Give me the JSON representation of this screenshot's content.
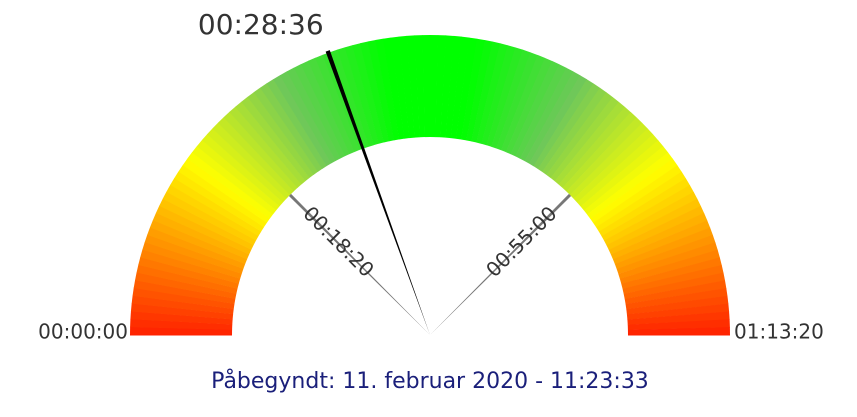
{
  "chart_data": {
    "type": "gauge",
    "values": [
      1716
    ],
    "value_labels": [
      "00:28:36"
    ],
    "ylim": [
      0,
      4400
    ],
    "yticks": [
      {
        "value": 0,
        "label": "00:00:00"
      },
      {
        "value": 1100,
        "label": "00:18:20"
      },
      {
        "value": 3300,
        "label": "00:55:00"
      },
      {
        "value": 4400,
        "label": "01:13:20"
      }
    ],
    "subtitle": "Påbegyndt: 11. februar 2020 - 11:23:33",
    "needle_color": "#000000"
  }
}
